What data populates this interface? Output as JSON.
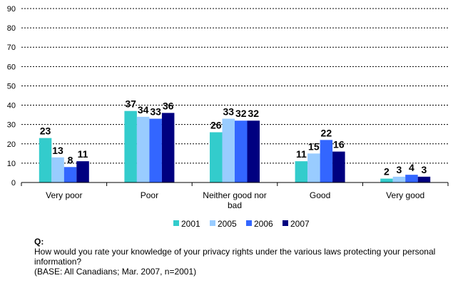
{
  "chart_data": {
    "type": "bar",
    "categories": [
      "Very poor",
      "Poor",
      "Neither good nor bad",
      "Good",
      "Very good"
    ],
    "category_lines": [
      [
        "Very poor"
      ],
      [
        "Poor"
      ],
      [
        "Neither good nor",
        "bad"
      ],
      [
        "Good"
      ],
      [
        "Very good"
      ]
    ],
    "series": [
      {
        "name": "2001",
        "color": "#33CCCC",
        "values": [
          23,
          37,
          26,
          11,
          2
        ]
      },
      {
        "name": "2005",
        "color": "#99CCFF",
        "values": [
          13,
          34,
          33,
          15,
          3
        ]
      },
      {
        "name": "2006",
        "color": "#3366FF",
        "values": [
          8,
          33,
          32,
          22,
          4
        ]
      },
      {
        "name": "2007",
        "color": "#000080",
        "values": [
          11,
          36,
          32,
          16,
          3
        ]
      }
    ],
    "ylim": [
      0,
      90
    ],
    "yticks": [
      0,
      10,
      20,
      30,
      40,
      50,
      60,
      70,
      80,
      90
    ],
    "grid": true,
    "legend": "bottom"
  },
  "footer": {
    "q_label": "Q:",
    "question": "How would you rate your knowledge of your privacy rights under the various laws protecting your personal information?",
    "base": "(BASE:  All Canadians; Mar. 2007, n=2001)"
  }
}
